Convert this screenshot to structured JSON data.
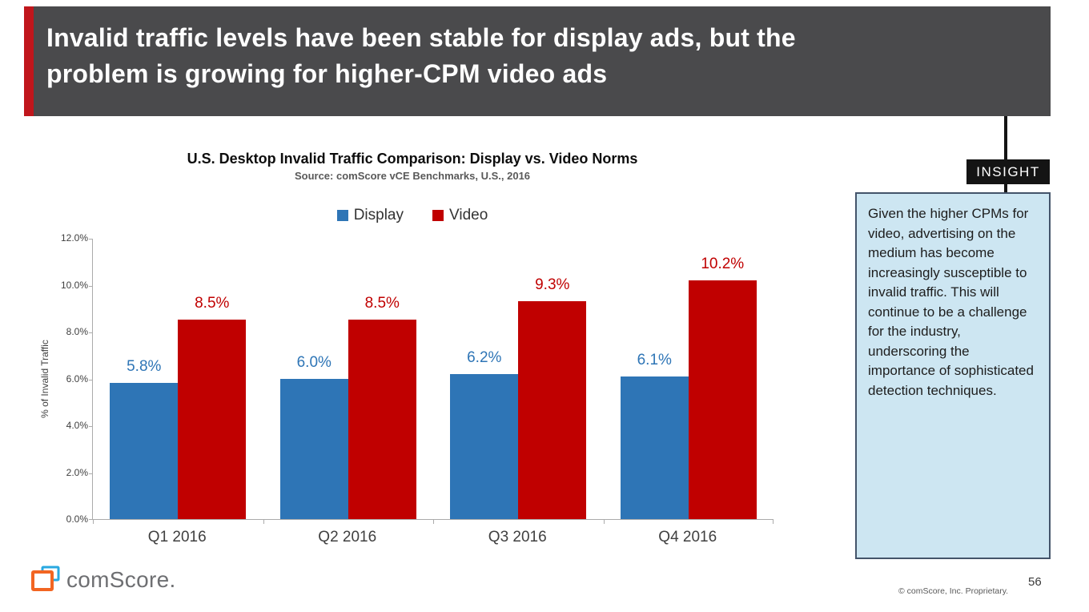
{
  "header": {
    "title": "Invalid traffic levels have been stable for display ads, but the\nproblem is growing for higher-CPM video ads"
  },
  "chart_data": {
    "type": "bar",
    "title": "U.S. Desktop Invalid Traffic Comparison: Display vs. Video Norms",
    "subtitle": "Source: comScore vCE Benchmarks, U.S., 2016",
    "ylabel": "% of Invalid Traffic",
    "xlabel": "",
    "ylim": [
      0,
      12
    ],
    "yticks": [
      0,
      2,
      4,
      6,
      8,
      10,
      12
    ],
    "ytick_labels": [
      "0.0%",
      "2.0%",
      "4.0%",
      "6.0%",
      "8.0%",
      "10.0%",
      "12.0%"
    ],
    "categories": [
      "Q1 2016",
      "Q2 2016",
      "Q3 2016",
      "Q4 2016"
    ],
    "series": [
      {
        "name": "Display",
        "color": "#2E75B6",
        "values": [
          5.8,
          6.0,
          6.2,
          6.1
        ],
        "data_labels": [
          "5.8%",
          "6.0%",
          "6.2%",
          "6.1%"
        ]
      },
      {
        "name": "Video",
        "color": "#C00000",
        "values": [
          8.5,
          8.5,
          9.3,
          10.2
        ],
        "data_labels": [
          "8.5%",
          "8.5%",
          "9.3%",
          "10.2%"
        ]
      }
    ],
    "legend_position": "top",
    "grid": false
  },
  "insight": {
    "tag": "INSIGHT",
    "text": "Given the higher CPMs for video, advertising on the medium has become increasingly susceptible to invalid traffic. This will continue to be a challenge for the industry, underscoring the importance of sophisticated detection techniques."
  },
  "footer": {
    "logo_text": "comScore.",
    "copyright": "© comScore, Inc. Proprietary.",
    "page_number": "56"
  },
  "colors": {
    "header_bg": "#4A4A4C",
    "accent_red": "#C0161C",
    "display_blue": "#2E75B6",
    "video_red": "#C00000",
    "insight_bg": "#CDE6F2",
    "insight_border": "#44546A",
    "tag_bg": "#141414"
  }
}
